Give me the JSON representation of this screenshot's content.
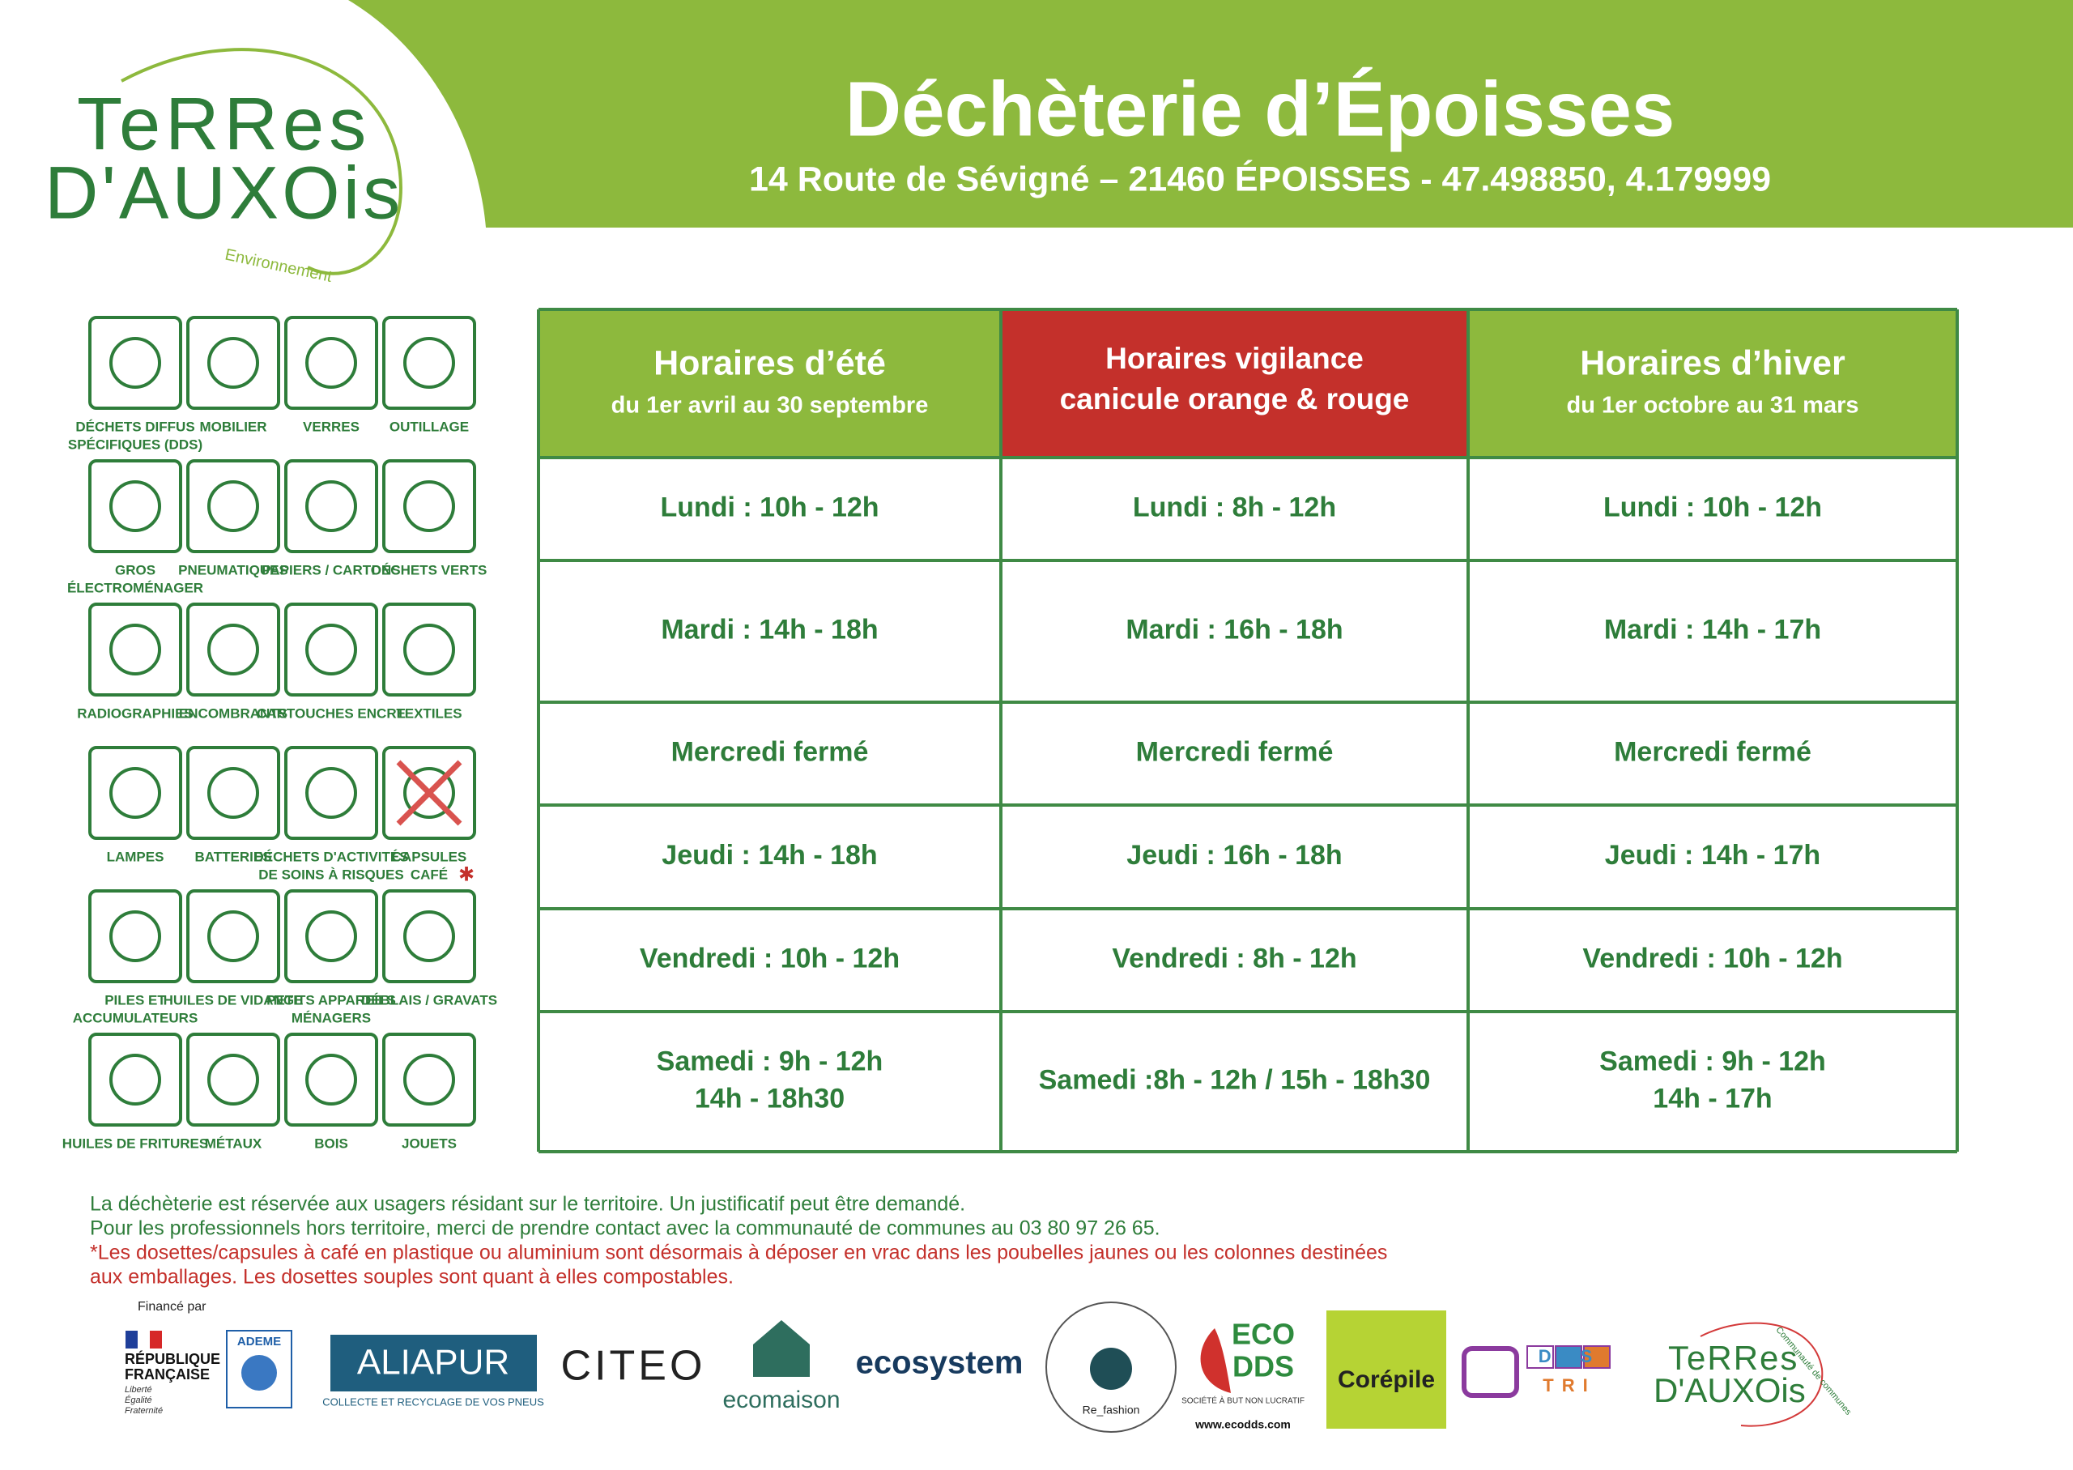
{
  "header": {
    "title": "Déchèterie d’Époisses",
    "address": "14 Route de Sévigné – 21460 ÉPOISSES - 47.498850, 4.179999"
  },
  "logo": {
    "line1": "TeRRes",
    "line2": "D'AUXOis",
    "tagline": "Environnement"
  },
  "waste_types": [
    [
      "DÉCHETS DIFFUS",
      "SPÉCIFIQUES (DDS)"
    ],
    [
      "MOBILIER"
    ],
    [
      "VERRES"
    ],
    [
      "OUTILLAGE"
    ],
    [
      "GROS",
      "ÉLECTROMÉNAGER"
    ],
    [
      "PNEUMATIQUES"
    ],
    [
      "PAPIERS / CARTONS"
    ],
    [
      "DÉCHETS VERTS"
    ],
    [
      "RADIOGRAPHIES"
    ],
    [
      "ENCOMBRANTS"
    ],
    [
      "CARTOUCHES ENCRE"
    ],
    [
      "TEXTILES"
    ],
    [
      "LAMPES"
    ],
    [
      "BATTERIES"
    ],
    [
      "DÉCHETS D'ACTIVITÉS",
      "DE SOINS À RISQUES"
    ],
    [
      "CAPSULES",
      "CAFÉ"
    ],
    [
      "PILES ET",
      "ACCUMULATEURS"
    ],
    [
      "HUILES DE VIDANGE"
    ],
    [
      "PETITS APPAREILS",
      "MÉNAGERS"
    ],
    [
      "DÉBLAIS / GRAVATS"
    ],
    [
      "HUILES DE FRITURES"
    ],
    [
      "MÉTAUX"
    ],
    [
      "BOIS"
    ],
    [
      "JOUETS"
    ]
  ],
  "capsule_marker": "✱",
  "table": {
    "columns": [
      {
        "title": [
          "Horaires d’été"
        ],
        "subtitle": "du 1er avril au 30 septembre"
      },
      {
        "title": [
          "Horaires vigilance",
          "canicule orange & rouge"
        ]
      },
      {
        "title": [
          "Horaires d’hiver"
        ],
        "subtitle": "du 1er octobre au 31 mars"
      }
    ],
    "rows": [
      [
        [
          "Lundi : 10h - 12h"
        ],
        [
          "Lundi : 8h - 12h"
        ],
        [
          "Lundi : 10h - 12h"
        ]
      ],
      [
        [
          "Mardi : 14h - 18h"
        ],
        [
          "Mardi : 16h - 18h"
        ],
        [
          "Mardi : 14h - 17h"
        ]
      ],
      [
        [
          "Mercredi fermé"
        ],
        [
          "Mercredi fermé"
        ],
        [
          "Mercredi fermé"
        ]
      ],
      [
        [
          "Jeudi : 14h - 18h"
        ],
        [
          "Jeudi : 16h - 18h"
        ],
        [
          "Jeudi : 14h - 17h"
        ]
      ],
      [
        [
          "Vendredi : 10h - 12h"
        ],
        [
          "Vendredi : 8h - 12h"
        ],
        [
          "Vendredi : 10h - 12h"
        ]
      ],
      [
        [
          "Samedi : 9h - 12h",
          "14h - 18h30"
        ],
        [
          "Samedi :8h - 12h / 15h - 18h30"
        ],
        [
          "Samedi : 9h - 12h",
          "14h - 17h"
        ]
      ]
    ]
  },
  "notes": [
    "La déchèterie est réservée aux usagers résidant sur le territoire. Un justificatif peut être demandé.",
    "Pour les professionnels hors territoire, merci de prendre contact avec la communauté de communes au 03 80 97 26 65."
  ],
  "capsule_notes": [
    "*Les dosettes/capsules à café en plastique ou aluminium sont désormais à déposer en vrac dans les poubelles jaunes ou les colonnes destinées",
    "aux emballages. Les dosettes souples sont quant à elles compostables."
  ],
  "funded_by": "Financé par",
  "sponsors": {
    "republique": [
      "RÉPUBLIQUE",
      "FRANÇAISE"
    ],
    "devise": [
      "Liberté",
      "Égalité",
      "Fraternité"
    ],
    "ademe": "ADEME",
    "aliapur": "ALIAPUR",
    "aliapur_tagline": "COLLECTE ET RECYCLAGE DE VOS PNEUS",
    "citeo": "CITEO",
    "ecomaison": "ecomaison",
    "ecosystem": "ecosystem",
    "refashion": "Re_fashion",
    "ecodds": [
      "ECO",
      "DDS"
    ],
    "ecodds_tagline": "SOCIÉTÉ À BUT NON LUCRATIF",
    "ecodds_url": "www.ecodds.com",
    "corepile": "Corépile",
    "dastri": [
      "DAS",
      "TRI"
    ],
    "terres": [
      "TeRRes",
      "D'AUXOis"
    ],
    "terres_tagline": "Communauté de communes"
  }
}
